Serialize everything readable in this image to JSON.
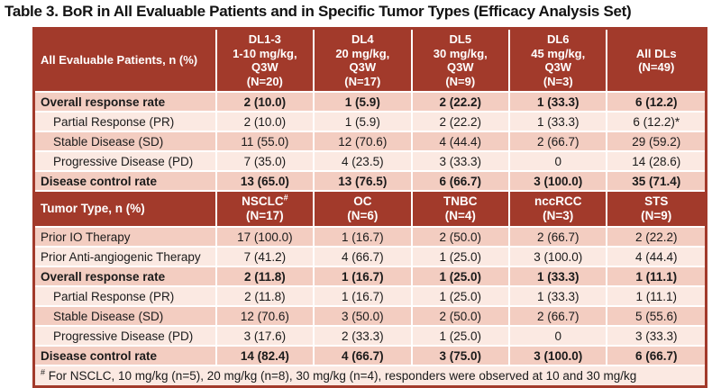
{
  "title": "Table 3. BoR in All Evaluable Patients and in Specific Tumor Types (Efficacy Analysis Set)",
  "colors": {
    "header_bg": "#A23A2B",
    "row_shaded": "#F3CDC1",
    "row_plain": "#FBE9E2",
    "header_text": "#FFFFFF",
    "body_text": "#1A1A1A"
  },
  "section1": {
    "label": "All Evaluable Patients, n (%)",
    "columns": [
      "DL1-3\n1-10 mg/kg,\nQ3W\n(N=20)",
      "DL4\n20 mg/kg,\nQ3W\n(N=17)",
      "DL5\n30 mg/kg,\nQ3W\n(N=9)",
      "DL6\n45 mg/kg,\nQ3W\n(N=3)",
      "All DLs\n(N=49)"
    ],
    "rows": [
      {
        "label": "Overall response rate",
        "values": [
          "2 (10.0)",
          "1 (5.9)",
          "2 (22.2)",
          "1 (33.3)",
          "6 (12.2)"
        ]
      },
      {
        "label": "Partial Response (PR)",
        "values": [
          "2 (10.0)",
          "1 (5.9)",
          "2 (22.2)",
          "1 (33.3)",
          "6 (12.2)*"
        ]
      },
      {
        "label": "Stable Disease (SD)",
        "values": [
          "11 (55.0)",
          "12 (70.6)",
          "4 (44.4)",
          "2 (66.7)",
          "29 (59.2)"
        ]
      },
      {
        "label": "Progressive Disease (PD)",
        "values": [
          "7 (35.0)",
          "4 (23.5)",
          "3 (33.3)",
          "0",
          "14 (28.6)"
        ]
      },
      {
        "label": "Disease control rate",
        "values": [
          "13 (65.0)",
          "13 (76.5)",
          "6 (66.7)",
          "3 (100.0)",
          "35 (71.4)"
        ]
      }
    ]
  },
  "section2": {
    "label": "Tumor Type, n (%)",
    "columns": [
      {
        "name": "NSCLC",
        "sup": "#",
        "n": "(N=17)"
      },
      {
        "name": "OC",
        "sup": "",
        "n": "(N=6)"
      },
      {
        "name": "TNBC",
        "sup": "",
        "n": "(N=4)"
      },
      {
        "name": "nccRCC",
        "sup": "",
        "n": "(N=3)"
      },
      {
        "name": "STS",
        "sup": "",
        "n": "(N=9)"
      }
    ],
    "rows": [
      {
        "label": "Prior IO Therapy",
        "values": [
          "17 (100.0)",
          "1 (16.7)",
          "2 (50.0)",
          "2 (66.7)",
          "2 (22.2)"
        ]
      },
      {
        "label": "Prior Anti-angiogenic Therapy",
        "values": [
          "7 (41.2)",
          "4 (66.7)",
          "1 (25.0)",
          "3 (100.0)",
          "4 (44.4)"
        ]
      },
      {
        "label": "Overall response rate",
        "values": [
          "2 (11.8)",
          "1 (16.7)",
          "1 (25.0)",
          "1 (33.3)",
          "1 (11.1)"
        ]
      },
      {
        "label": "Partial Response (PR)",
        "values": [
          "2 (11.8)",
          "1 (16.7)",
          "1 (25.0)",
          "1 (33.3)",
          "1 (11.1)"
        ]
      },
      {
        "label": "Stable Disease (SD)",
        "values": [
          "12 (70.6)",
          "3 (50.0)",
          "2 (50.0)",
          "2 (66.7)",
          "5 (55.6)"
        ]
      },
      {
        "label": "Progressive Disease (PD)",
        "values": [
          "3 (17.6)",
          "2 (33.3)",
          "1 (25.0)",
          "0",
          "3 (33.3)"
        ]
      },
      {
        "label": "Disease control rate",
        "values": [
          "14 (82.4)",
          "4 (66.7)",
          "3 (75.0)",
          "3 (100.0)",
          "6 (66.7)"
        ]
      }
    ]
  },
  "footnote": {
    "sup": "#",
    "text": " For NSCLC, 10 mg/kg (n=5), 20 mg/kg (n=8), 30 mg/kg (n=4), responders were observed at 10 and 30 mg/kg"
  }
}
